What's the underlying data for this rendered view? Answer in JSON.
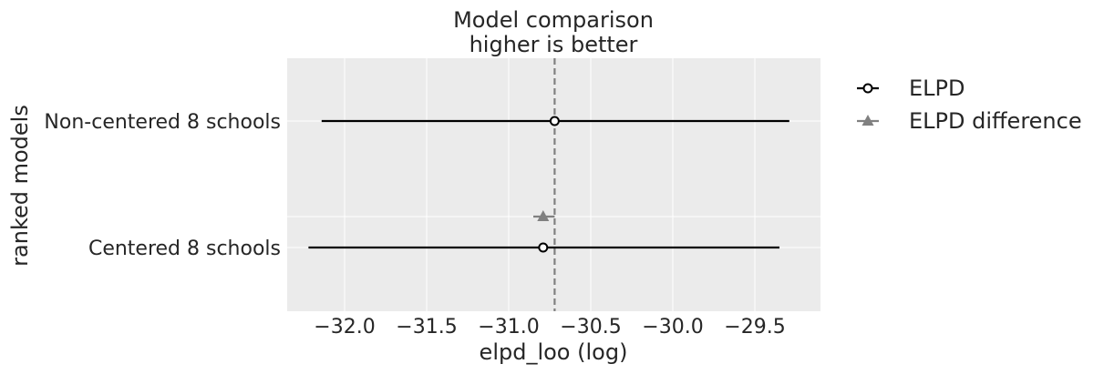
{
  "chart_data": {
    "type": "forest",
    "title": "Model comparison\nhigher is better",
    "xlabel": "elpd_loo (log)",
    "ylabel": "ranked models",
    "xlim": [
      -32.35,
      -29.1
    ],
    "xticks": [
      -32.0,
      -31.5,
      -31.0,
      -30.5,
      -30.0,
      -29.5
    ],
    "xtick_labels": [
      "−32.0",
      "−31.5",
      "−31.0",
      "−30.5",
      "−30.0",
      "−29.5"
    ],
    "grid": true,
    "legend_position": "outside-right",
    "reference_line": {
      "value": -30.72,
      "style": "dashed"
    },
    "models": [
      {
        "name": "Non-centered 8 schools",
        "elpd": -30.72,
        "lower": -32.14,
        "upper": -29.29
      },
      {
        "name": "Centered 8 schools",
        "elpd": -30.79,
        "lower": -32.22,
        "upper": -29.35,
        "diff": -30.79,
        "diff_lower": -30.85,
        "diff_upper": -30.72
      }
    ],
    "series": [
      {
        "name": "ELPD",
        "marker": "open-circle",
        "color": "#000000"
      },
      {
        "name": "ELPD difference",
        "marker": "triangle",
        "color": "#808080"
      }
    ]
  }
}
